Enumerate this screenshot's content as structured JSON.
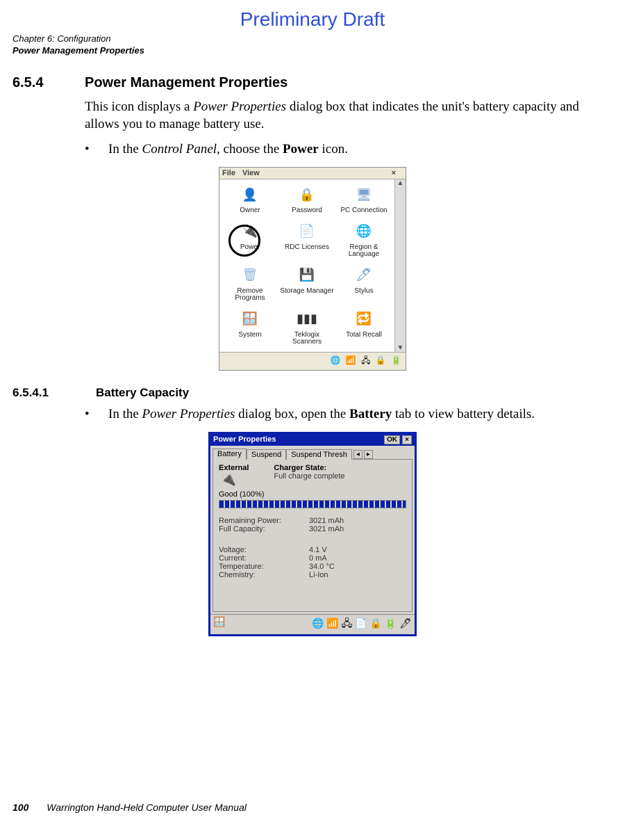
{
  "draft_label": "Preliminary Draft",
  "header": {
    "chapter": "Chapter 6:  Configuration",
    "section": "Power Management Properties"
  },
  "sec654": {
    "num": "6.5.4",
    "title": "Power Management Properties",
    "p1_a": "This icon displays a ",
    "p1_b": "Power Properties",
    "p1_c": " dialog box that indicates the unit's battery capacity and allows you to manage battery use.",
    "bullet_a": "In the ",
    "bullet_b": "Control Panel",
    "bullet_c": ", choose the ",
    "bullet_d": "Power",
    "bullet_e": " icon."
  },
  "control_panel": {
    "menu": {
      "file": "File",
      "view": "View",
      "close": "×"
    },
    "items": [
      {
        "label": "Owner",
        "glyph": "👤",
        "color": "#d9b38c"
      },
      {
        "label": "Password",
        "glyph": "🔒",
        "color": "#e6cc66"
      },
      {
        "label": "PC Connection",
        "glyph": "🖥",
        "color": "#7fa2d1"
      },
      {
        "label": "Power",
        "glyph": "🔌",
        "color": "#bfbfbf"
      },
      {
        "label": "RDC Licenses",
        "glyph": "📄",
        "color": "#e08a3a"
      },
      {
        "label": "Region & Language",
        "glyph": "🌐",
        "color": "#5aa0d4"
      },
      {
        "label": "Remove Programs",
        "glyph": "🗑",
        "color": "#8fb3d9"
      },
      {
        "label": "Storage Manager",
        "glyph": "💾",
        "color": "#6fae4f"
      },
      {
        "label": "Stylus",
        "glyph": "🖊",
        "color": "#5a8ab8"
      },
      {
        "label": "System",
        "glyph": "🪟",
        "color": "#c94e4e"
      },
      {
        "label": "Teklogix Scanners",
        "glyph": "▮▮▮",
        "color": "#333333"
      },
      {
        "label": "Total Recall",
        "glyph": "🔁",
        "color": "#4f8f3f"
      }
    ],
    "scroll": {
      "up": "▲",
      "down": "▼"
    },
    "tray": "🌐 📶 🖧 🔒 🔋"
  },
  "sec6541": {
    "num": "6.5.4.1",
    "title": "Battery Capacity",
    "bullet_a": "In the ",
    "bullet_b": "Power Properties",
    "bullet_c": " dialog box, open the ",
    "bullet_d": "Battery",
    "bullet_e": " tab to view battery details."
  },
  "power_dialog": {
    "title": "Power Properties",
    "ok": "OK",
    "close": "×",
    "tabs": {
      "t1": "Battery",
      "t2": "Suspend",
      "t3": "Suspend Thresh",
      "left": "◂",
      "right": "▸"
    },
    "external_label": "External",
    "charger_label": "Charger State:",
    "charger_value": "Full charge complete",
    "plug_glyph": "🔌",
    "good_label": "Good  (100%)",
    "stats": [
      {
        "label": "Remaining Power:",
        "value": "3021 mAh"
      },
      {
        "label": "Full Capacity:",
        "value": "3021 mAh"
      }
    ],
    "stats2": [
      {
        "label": "Voltage:",
        "value": "4.1 V"
      },
      {
        "label": "Current:",
        "value": "0 mA"
      },
      {
        "label": "Temperature:",
        "value": "34.0 °C"
      },
      {
        "label": "Chemistry:",
        "value": "Li-Ion"
      }
    ],
    "taskbar": {
      "start": "🪟",
      "tray": "🌐 📶 🖧 📄 🔒 🔋  🖊"
    }
  },
  "footer": {
    "page": "100",
    "book": "Warrington Hand-Held Computer User Manual"
  },
  "colors": {
    "draft": "#2e4fd6",
    "titlebar": "#0a20aa",
    "dialog_bg": "#d6d3ce"
  }
}
